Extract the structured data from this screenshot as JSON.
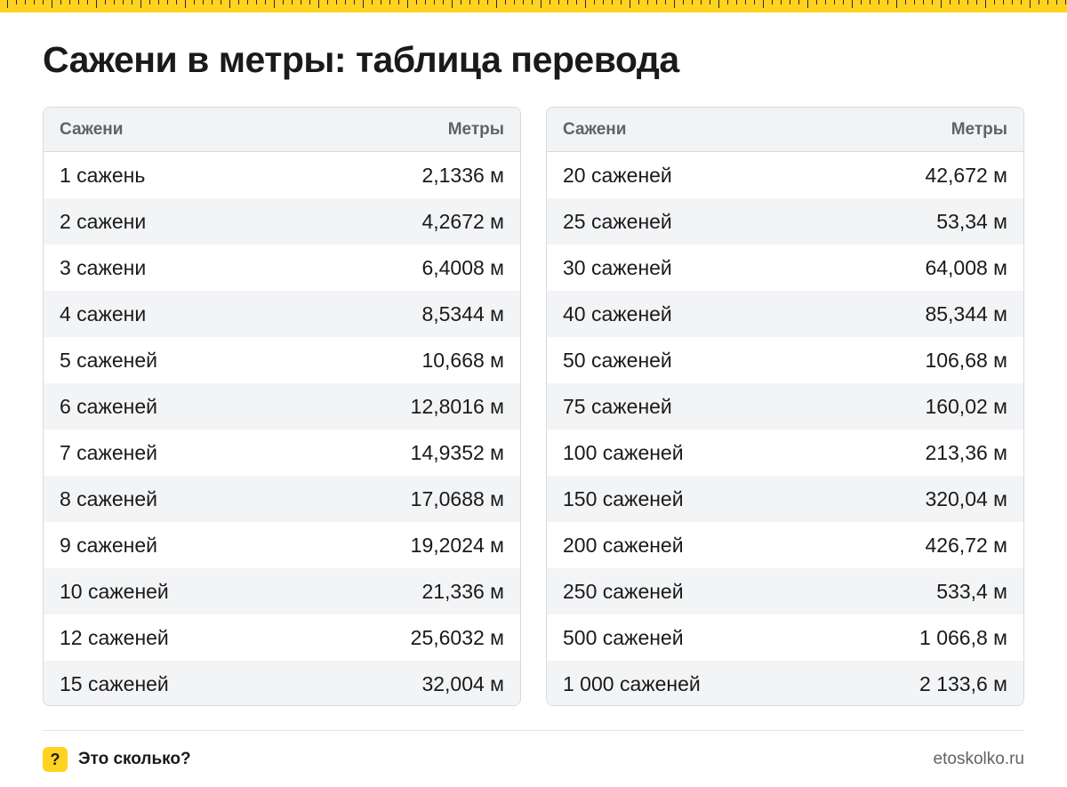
{
  "title": "Сажени в метры: таблица перевода",
  "tables": [
    {
      "header": {
        "col1": "Сажени",
        "col2": "Метры"
      },
      "rows": [
        {
          "a": "1 сажень",
          "b": "2,1336 м"
        },
        {
          "a": "2 сажени",
          "b": "4,2672 м"
        },
        {
          "a": "3 сажени",
          "b": "6,4008 м"
        },
        {
          "a": "4 сажени",
          "b": "8,5344 м"
        },
        {
          "a": "5 саженей",
          "b": "10,668 м"
        },
        {
          "a": "6 саженей",
          "b": "12,8016 м"
        },
        {
          "a": "7 саженей",
          "b": "14,9352 м"
        },
        {
          "a": "8 саженей",
          "b": "17,0688 м"
        },
        {
          "a": "9 саженей",
          "b": "19,2024 м"
        },
        {
          "a": "10 саженей",
          "b": "21,336 м"
        },
        {
          "a": "12 саженей",
          "b": "25,6032 м"
        },
        {
          "a": "15 саженей",
          "b": "32,004 м"
        }
      ]
    },
    {
      "header": {
        "col1": "Сажени",
        "col2": "Метры"
      },
      "rows": [
        {
          "a": "20 саженей",
          "b": "42,672 м"
        },
        {
          "a": "25 саженей",
          "b": "53,34 м"
        },
        {
          "a": "30 саженей",
          "b": "64,008 м"
        },
        {
          "a": "40 саженей",
          "b": "85,344 м"
        },
        {
          "a": "50 саженей",
          "b": "106,68 м"
        },
        {
          "a": "75 саженей",
          "b": "160,02 м"
        },
        {
          "a": "100 саженей",
          "b": "213,36 м"
        },
        {
          "a": "150 саженей",
          "b": "320,04 м"
        },
        {
          "a": "200 саженей",
          "b": "426,72 м"
        },
        {
          "a": "250 саженей",
          "b": "533,4 м"
        },
        {
          "a": "500 саженей",
          "b": "1 066,8 м"
        },
        {
          "a": "1 000 саженей",
          "b": "2 133,6 м"
        }
      ]
    }
  ],
  "footer": {
    "logo_glyph": "?",
    "brand": "Это сколько?",
    "site": "etoskolko.ru"
  },
  "colors": {
    "accent": "#ffd21f",
    "header_bg": "#f2f3f5",
    "stripe_bg": "#f3f4f6",
    "border": "#d7dadd",
    "text": "#1a1a1a",
    "muted": "#5f6368"
  }
}
